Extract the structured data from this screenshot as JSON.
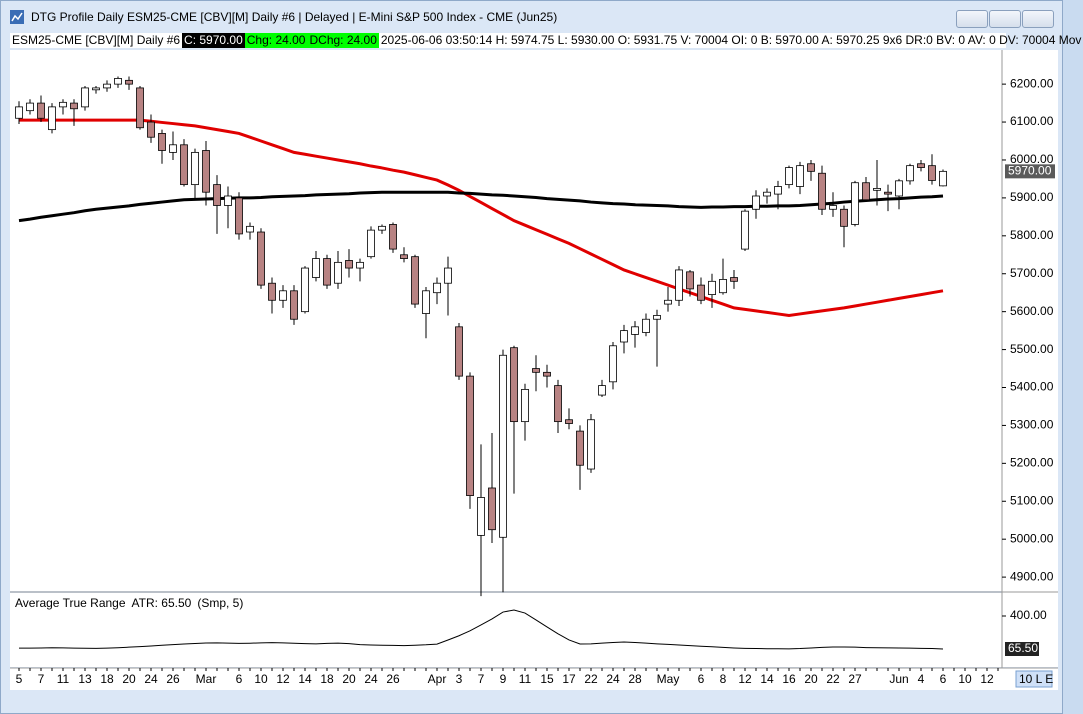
{
  "window": {
    "title": "DTG Profile Daily ESM25-CME [CBV][M]  Daily #6 | Delayed | E-Mini S&P 500 Index - CME (Jun25)"
  },
  "header": {
    "symbol": "ESM25-CME [CBV][M]  Daily #6",
    "close": "C: 5970.00",
    "change": "Chg: 24.00",
    "day_change": "DChg: 24.00",
    "details": "2025-06-06 03:50:14 H: 5974.75 L: 5930.00 O: 5931.75 V: 70004 OI: 0 B: 5970.00 A: 5970.25 9x6 DR:0 BV: 0 AV: 0 DV: 70004 Mov"
  },
  "chart_data": [
    {
      "type": "candlestick",
      "categories": [
        "5",
        null,
        "7",
        null,
        "11",
        null,
        "13",
        null,
        "18",
        null,
        "20",
        null,
        "24",
        null,
        "26",
        null,
        null,
        "Mar",
        null,
        null,
        "6",
        null,
        "10",
        null,
        "12",
        null,
        "14",
        null,
        "18",
        null,
        "20",
        null,
        "24",
        null,
        "26",
        null,
        null,
        null,
        "Apr",
        null,
        "3",
        null,
        "7",
        null,
        "9",
        null,
        "11",
        null,
        "15",
        null,
        "17",
        null,
        "22",
        null,
        "24",
        null,
        "28",
        null,
        null,
        "May",
        null,
        null,
        "6",
        null,
        "8",
        null,
        "12",
        null,
        "14",
        null,
        "16",
        null,
        "20",
        null,
        "22",
        null,
        "27",
        null,
        null,
        null,
        "Jun",
        null,
        "4",
        null,
        "6",
        null,
        "10",
        null,
        "12",
        null
      ],
      "open": [
        6110,
        6130,
        6150,
        6080,
        6140,
        6150,
        6140,
        6185,
        6190,
        6200,
        6210,
        6190,
        6100,
        6070,
        6020,
        6040,
        5935,
        6025,
        5935,
        5880,
        5900,
        5810,
        5810,
        5675,
        5630,
        5655,
        5600,
        5690,
        5740,
        5675,
        5735,
        5715,
        5745,
        5815,
        5830,
        5750,
        5745,
        5595,
        5650,
        5675,
        5560,
        5430,
        5010,
        5135,
        5005,
        5505,
        5310,
        5450,
        5440,
        5405,
        5315,
        5285,
        5185,
        5380,
        5415,
        5520,
        5540,
        5545,
        5580,
        5620,
        5630,
        5705,
        5670,
        5645,
        5650,
        5690,
        5765,
        5870,
        5905,
        5910,
        5935,
        5930,
        5990,
        5965,
        5870,
        5870,
        5830,
        5940,
        5920,
        5915,
        5905,
        5945,
        5990,
        5985,
        5931.75,
        null,
        null,
        null,
        null,
        null
      ],
      "high": [
        6155,
        6160,
        6170,
        6150,
        6160,
        6160,
        6195,
        6195,
        6210,
        6220,
        6220,
        6195,
        6120,
        6080,
        6075,
        6055,
        6030,
        6050,
        5960,
        5930,
        5915,
        5835,
        5820,
        5690,
        5670,
        5670,
        5720,
        5760,
        5750,
        5760,
        5765,
        5740,
        5825,
        5830,
        5835,
        5770,
        5750,
        5665,
        5690,
        5745,
        5570,
        5440,
        5250,
        5280,
        5500,
        5510,
        5410,
        5485,
        5460,
        5420,
        5345,
        5300,
        5330,
        5420,
        5520,
        5565,
        5575,
        5595,
        5605,
        5665,
        5720,
        5710,
        5690,
        5700,
        5740,
        5710,
        5870,
        5920,
        5925,
        5945,
        5985,
        5995,
        6000,
        5985,
        5915,
        5880,
        5945,
        5955,
        6000,
        5935,
        5950,
        5990,
        6000,
        6015,
        5974.75,
        null,
        null,
        null,
        null,
        null
      ],
      "low": [
        6095,
        6120,
        6100,
        6070,
        6120,
        6090,
        6130,
        6175,
        6180,
        6190,
        6185,
        6080,
        6045,
        5990,
        6000,
        5930,
        5895,
        5880,
        5805,
        5820,
        5790,
        5790,
        5660,
        5595,
        5610,
        5565,
        5595,
        5680,
        5660,
        5660,
        5690,
        5680,
        5740,
        5805,
        5755,
        5730,
        5610,
        5530,
        5620,
        5590,
        5420,
        5080,
        4850,
        4990,
        4860,
        5120,
        5260,
        5390,
        5400,
        5280,
        5290,
        5130,
        5175,
        5375,
        5395,
        5490,
        5505,
        5535,
        5455,
        5600,
        5615,
        5640,
        5620,
        5610,
        5645,
        5660,
        5760,
        5845,
        5885,
        5870,
        5925,
        5910,
        5945,
        5855,
        5850,
        5770,
        5825,
        5890,
        5880,
        5865,
        5870,
        5935,
        5970,
        5935,
        5930,
        null,
        null,
        null,
        null,
        null
      ],
      "close": [
        6140,
        6150,
        6110,
        6140,
        6152,
        6135,
        6190,
        6190,
        6200,
        6215,
        6200,
        6085,
        6060,
        6025,
        6040,
        5935,
        6020,
        5915,
        5880,
        5905,
        5805,
        5825,
        5670,
        5630,
        5655,
        5580,
        5715,
        5740,
        5670,
        5730,
        5715,
        5730,
        5815,
        5825,
        5765,
        5740,
        5620,
        5655,
        5675,
        5715,
        5430,
        5115,
        5110,
        5025,
        5485,
        5310,
        5395,
        5440,
        5430,
        5310,
        5305,
        5195,
        5315,
        5405,
        5510,
        5550,
        5560,
        5580,
        5590,
        5630,
        5710,
        5660,
        5630,
        5680,
        5685,
        5680,
        5865,
        5905,
        5915,
        5930,
        5980,
        5985,
        5970,
        5870,
        5880,
        5825,
        5940,
        5895,
        5925,
        5910,
        5945,
        5985,
        5980,
        5946,
        5970,
        null,
        null,
        null,
        null,
        null
      ],
      "up_color": "#ffffff",
      "down_color": "#b88383",
      "lines": [
        {
          "color": "#e00000",
          "values": [
            6105,
            6105,
            6105,
            6105,
            6105,
            6105,
            6105,
            6105,
            6105,
            6105,
            6105,
            6105,
            6102,
            6099,
            6096,
            6093,
            6090,
            6085,
            6080,
            6075,
            6070,
            6060,
            6050,
            6040,
            6030,
            6020,
            6015,
            6010,
            6005,
            6000,
            5995,
            5990,
            5984,
            5979,
            5973,
            5968,
            5961,
            5954,
            5947,
            5934,
            5920,
            5904,
            5888,
            5872,
            5856,
            5840,
            5828,
            5816,
            5804,
            5792,
            5780,
            5766,
            5752,
            5738,
            5724,
            5710,
            5700,
            5690,
            5680,
            5670,
            5660,
            5650,
            5640,
            5630,
            5620,
            5610,
            5606,
            5602,
            5598,
            5594,
            5590,
            5594,
            5598,
            5602,
            5606,
            5610,
            5615,
            5620,
            5625,
            5630,
            5635,
            5640,
            5645,
            5650,
            5655,
            null,
            null,
            null,
            null,
            null
          ]
        },
        {
          "color": "#000000",
          "values": [
            5840,
            5844,
            5849,
            5853,
            5857,
            5861,
            5866,
            5870,
            5873,
            5876,
            5879,
            5883,
            5886,
            5889,
            5892,
            5895,
            5896,
            5897,
            5898,
            5899,
            5900,
            5900,
            5901,
            5903,
            5904,
            5905,
            5906,
            5908,
            5909,
            5910,
            5911,
            5913,
            5914,
            5915,
            5915,
            5915,
            5915,
            5915,
            5915,
            5915,
            5913,
            5912,
            5910,
            5908,
            5907,
            5905,
            5903,
            5901,
            5898,
            5896,
            5894,
            5892,
            5889,
            5887,
            5885,
            5884,
            5882,
            5881,
            5880,
            5879,
            5877,
            5876,
            5875,
            5876,
            5876,
            5877,
            5877,
            5878,
            5878,
            5879,
            5879,
            5880,
            5882,
            5884,
            5886,
            5889,
            5891,
            5893,
            5895,
            5897,
            5898,
            5900,
            5902,
            5903,
            5905,
            null,
            null,
            null,
            null,
            null
          ]
        }
      ],
      "ylim": [
        4866,
        6290
      ],
      "yticks": [
        {
          "value": 4900,
          "label": "4900.00"
        },
        {
          "value": 5000,
          "label": "5000.00"
        },
        {
          "value": 5100,
          "label": "5100.00"
        },
        {
          "value": 5200,
          "label": "5200.00"
        },
        {
          "value": 5300,
          "label": "5300.00"
        },
        {
          "value": 5400,
          "label": "5400.00"
        },
        {
          "value": 5500,
          "label": "5500.00"
        },
        {
          "value": 5600,
          "label": "5600.00"
        },
        {
          "value": 5700,
          "label": "5700.00"
        },
        {
          "value": 5800,
          "label": "5800.00"
        },
        {
          "value": 5900,
          "label": "5900.00"
        },
        {
          "value": 6000,
          "label": "6000.00"
        },
        {
          "value": 6100,
          "label": "6100.00"
        },
        {
          "value": 6200,
          "label": "6200.00"
        }
      ],
      "last_price": {
        "value": 5970,
        "label": "5970.00"
      },
      "grid": false
    },
    {
      "type": "line",
      "title": "Average True Range",
      "annotation": "ATR: 65.50",
      "params": "(Smp, 5)",
      "color": "#000000",
      "values": [
        75,
        74,
        76,
        78,
        77,
        75,
        73,
        72,
        74,
        78,
        84,
        90,
        96,
        103,
        110,
        116,
        121,
        126,
        128,
        125,
        122,
        124,
        128,
        130,
        127,
        124,
        120,
        118,
        122,
        125,
        120,
        110,
        106,
        104,
        102,
        100,
        104,
        108,
        115,
        157,
        200,
        250,
        309,
        370,
        440,
        461,
        430,
        360,
        289,
        220,
        157,
        116,
        118,
        125,
        132,
        137,
        132,
        125,
        118,
        112,
        106,
        100,
        94,
        88,
        82,
        76,
        72,
        70,
        68,
        68,
        67,
        70,
        76,
        82,
        86,
        86,
        84,
        80,
        78,
        77,
        76,
        74,
        72,
        70,
        65.5,
        null,
        null,
        null,
        null,
        null
      ],
      "ylim": [
        -117,
        613
      ],
      "yticks": [
        {
          "value": 400,
          "label": "400.00"
        }
      ],
      "last_value": {
        "value": 65.5,
        "label": "65.50"
      }
    }
  ],
  "toolbar": {
    "zoom": "10 L E"
  }
}
